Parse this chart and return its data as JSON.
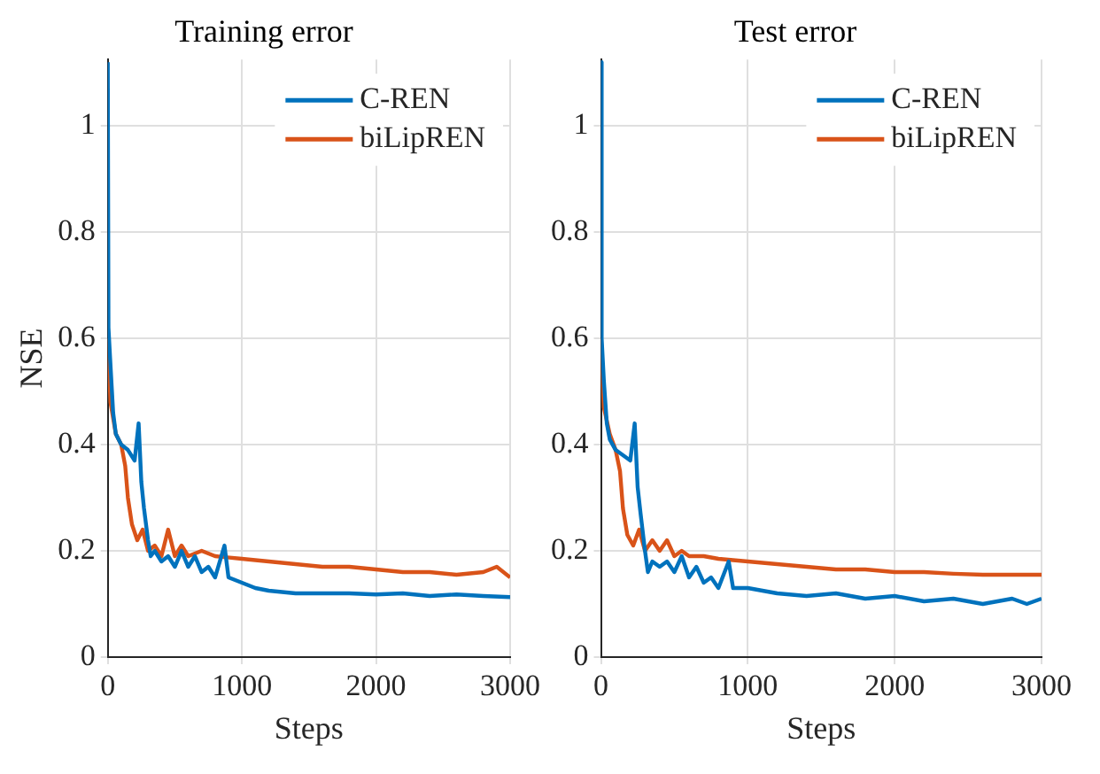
{
  "chart_data": [
    {
      "type": "line",
      "title": "Training error",
      "xlabel": "Steps",
      "ylabel": "NSE",
      "xlim": [
        0,
        3000
      ],
      "xticks": [
        0,
        1000,
        2000,
        3000
      ],
      "ylim": [
        0,
        1.125
      ],
      "yticks": [
        0,
        0.2,
        0.4,
        0.6,
        0.8,
        1
      ],
      "grid": true,
      "legend": "top right",
      "series": [
        {
          "name": "C-REN",
          "color": "#0072bd",
          "x": [
            0,
            5,
            20,
            40,
            60,
            100,
            150,
            200,
            230,
            250,
            270,
            300,
            320,
            350,
            400,
            450,
            500,
            550,
            600,
            650,
            700,
            750,
            800,
            870,
            900,
            1000,
            1100,
            1200,
            1400,
            1600,
            1800,
            2000,
            2200,
            2400,
            2600,
            2800,
            3000
          ],
          "values": [
            1.12,
            0.62,
            0.55,
            0.46,
            0.42,
            0.4,
            0.39,
            0.37,
            0.44,
            0.33,
            0.28,
            0.22,
            0.19,
            0.2,
            0.18,
            0.19,
            0.17,
            0.2,
            0.17,
            0.19,
            0.16,
            0.17,
            0.15,
            0.21,
            0.15,
            0.14,
            0.13,
            0.125,
            0.12,
            0.12,
            0.12,
            0.118,
            0.12,
            0.115,
            0.118,
            0.115,
            0.113
          ]
        },
        {
          "name": "biLipREN",
          "color": "#d95319",
          "x": [
            0,
            20,
            60,
            100,
            130,
            150,
            180,
            220,
            260,
            300,
            350,
            400,
            450,
            500,
            550,
            600,
            700,
            800,
            1000,
            1200,
            1400,
            1600,
            1800,
            2000,
            2200,
            2400,
            2600,
            2800,
            2900,
            3000
          ],
          "values": [
            0.6,
            0.48,
            0.42,
            0.4,
            0.36,
            0.3,
            0.25,
            0.22,
            0.24,
            0.2,
            0.21,
            0.19,
            0.24,
            0.19,
            0.21,
            0.19,
            0.2,
            0.19,
            0.185,
            0.18,
            0.175,
            0.17,
            0.17,
            0.165,
            0.16,
            0.16,
            0.155,
            0.16,
            0.17,
            0.15
          ]
        }
      ]
    },
    {
      "type": "line",
      "title": "Test error",
      "xlabel": "Steps",
      "xlim": [
        0,
        3000
      ],
      "xticks": [
        0,
        1000,
        2000,
        3000
      ],
      "ylim": [
        0,
        1.125
      ],
      "yticks": [
        0,
        0.2,
        0.4,
        0.6,
        0.8,
        1
      ],
      "grid": true,
      "legend": "top right",
      "series": [
        {
          "name": "C-REN",
          "color": "#0072bd",
          "x": [
            0,
            5,
            20,
            40,
            60,
            100,
            150,
            200,
            230,
            250,
            270,
            300,
            320,
            350,
            400,
            450,
            500,
            550,
            600,
            650,
            700,
            750,
            800,
            870,
            900,
            1000,
            1100,
            1200,
            1400,
            1600,
            1800,
            2000,
            2200,
            2400,
            2600,
            2800,
            2900,
            3000
          ],
          "values": [
            1.12,
            0.6,
            0.52,
            0.44,
            0.41,
            0.39,
            0.38,
            0.37,
            0.44,
            0.32,
            0.27,
            0.2,
            0.16,
            0.18,
            0.17,
            0.18,
            0.16,
            0.19,
            0.15,
            0.17,
            0.14,
            0.15,
            0.13,
            0.18,
            0.13,
            0.13,
            0.125,
            0.12,
            0.115,
            0.12,
            0.11,
            0.115,
            0.105,
            0.11,
            0.1,
            0.11,
            0.1,
            0.11
          ]
        },
        {
          "name": "biLipREN",
          "color": "#d95319",
          "x": [
            0,
            20,
            60,
            100,
            130,
            150,
            180,
            220,
            260,
            300,
            350,
            400,
            450,
            500,
            550,
            600,
            700,
            800,
            1000,
            1200,
            1400,
            1600,
            1800,
            2000,
            2200,
            2400,
            2600,
            2800,
            3000
          ],
          "values": [
            0.6,
            0.47,
            0.42,
            0.39,
            0.35,
            0.28,
            0.23,
            0.21,
            0.24,
            0.2,
            0.22,
            0.2,
            0.22,
            0.19,
            0.2,
            0.19,
            0.19,
            0.185,
            0.18,
            0.175,
            0.17,
            0.165,
            0.165,
            0.16,
            0.16,
            0.157,
            0.155,
            0.155,
            0.155
          ]
        }
      ]
    }
  ]
}
